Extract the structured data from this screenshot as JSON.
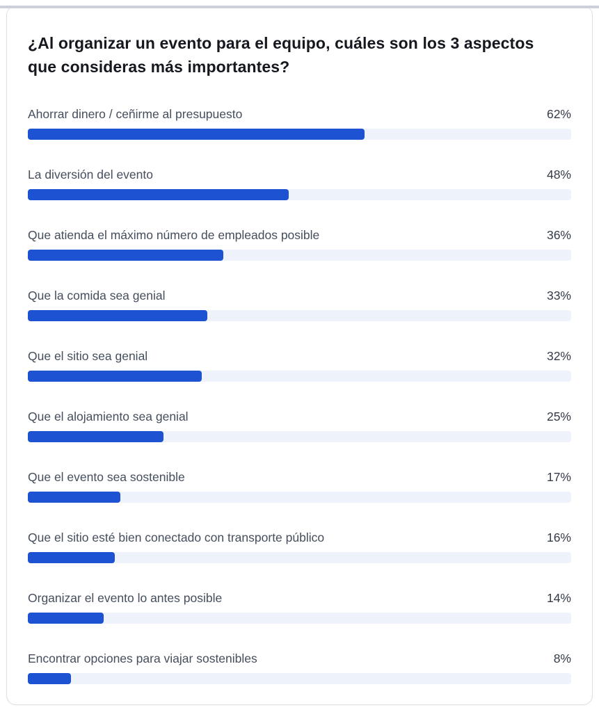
{
  "chart_data": {
    "type": "bar",
    "orientation": "horizontal",
    "title": "¿Al organizar un evento para el equipo, cuáles son los 3 aspectos que consideras más importantes?",
    "categories": [
      "Ahorrar dinero / ceñirme al presupuesto",
      "La diversión del evento",
      "Que atienda el máximo número de empleados posible",
      "Que la comida sea genial",
      "Que el sitio sea genial",
      "Que el alojamiento sea genial",
      "Que el evento sea sostenible",
      "Que el sitio esté bien conectado con transporte público",
      "Organizar el evento lo antes posible",
      "Encontrar opciones para viajar sostenibles"
    ],
    "values": [
      62,
      48,
      36,
      33,
      32,
      25,
      17,
      16,
      14,
      8
    ],
    "value_suffix": "%",
    "xlabel": "",
    "ylabel": "",
    "xlim": [
      0,
      100
    ],
    "grid": false,
    "legend": false
  },
  "colors": {
    "bar_fill": "#1d52d2",
    "bar_track": "#eef2fb",
    "title_text": "#15181e",
    "label_text": "#454e5d",
    "value_text": "#333a47",
    "card_border": "#dcdfe5",
    "card_background": "#ffffff"
  }
}
